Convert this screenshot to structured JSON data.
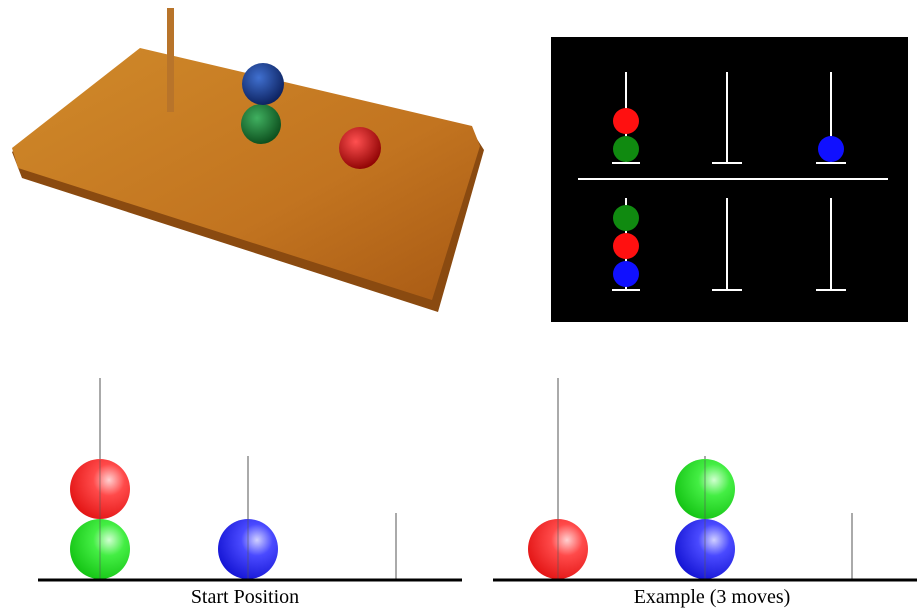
{
  "figure": {
    "panels": [
      {
        "label": "Start Position"
      },
      {
        "label": "Example (3 moves)"
      }
    ]
  }
}
